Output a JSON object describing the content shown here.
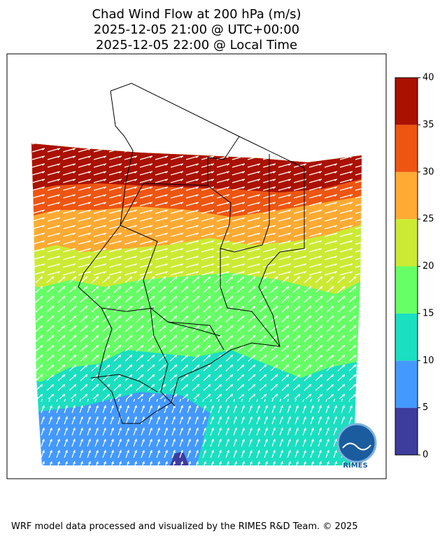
{
  "title": {
    "lines": [
      "Chad Wind Flow at 200 hPa (m/s)",
      "2025-12-05 21:00 @ UTC+00:00",
      "2025-12-05 22:00 @ Local Time"
    ]
  },
  "colorbar": {
    "lim": [
      0,
      40
    ],
    "ticks": [
      0,
      5,
      10,
      15,
      20,
      25,
      30,
      35,
      40
    ],
    "colors": [
      "#3d3d9e",
      "#4499ff",
      "#1adfc0",
      "#66ff66",
      "#ccea33",
      "#ffaa33",
      "#ee5511",
      "#aa1100"
    ]
  },
  "logo": {
    "text": "RIMES"
  },
  "footer": "WRF model data processed and visualized by the RIMES R&D Team. © 2025"
}
